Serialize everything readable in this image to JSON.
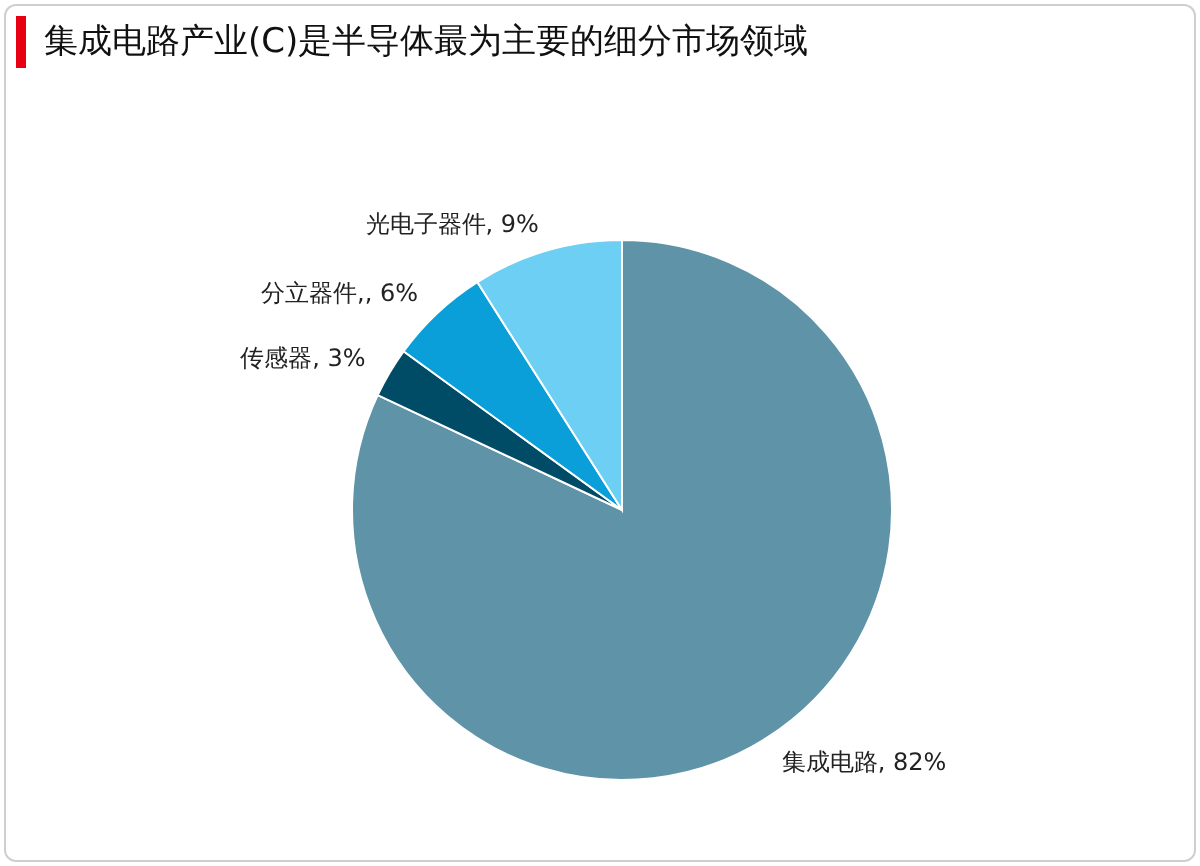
{
  "chart_data": {
    "type": "pie",
    "title": "集成电路产业(C)是半导体最为主要的细分市场领域",
    "categories": [
      "集成电路",
      "传感器",
      "分立器件",
      "光电子器件"
    ],
    "values": [
      82,
      3,
      6,
      9
    ],
    "value_labels": [
      "82%",
      "3%",
      ", 6%",
      "9%"
    ],
    "colors": [
      "#5f93a8",
      "#004b66",
      "#0a9fd8",
      "#6ccff3"
    ],
    "legend": false
  }
}
